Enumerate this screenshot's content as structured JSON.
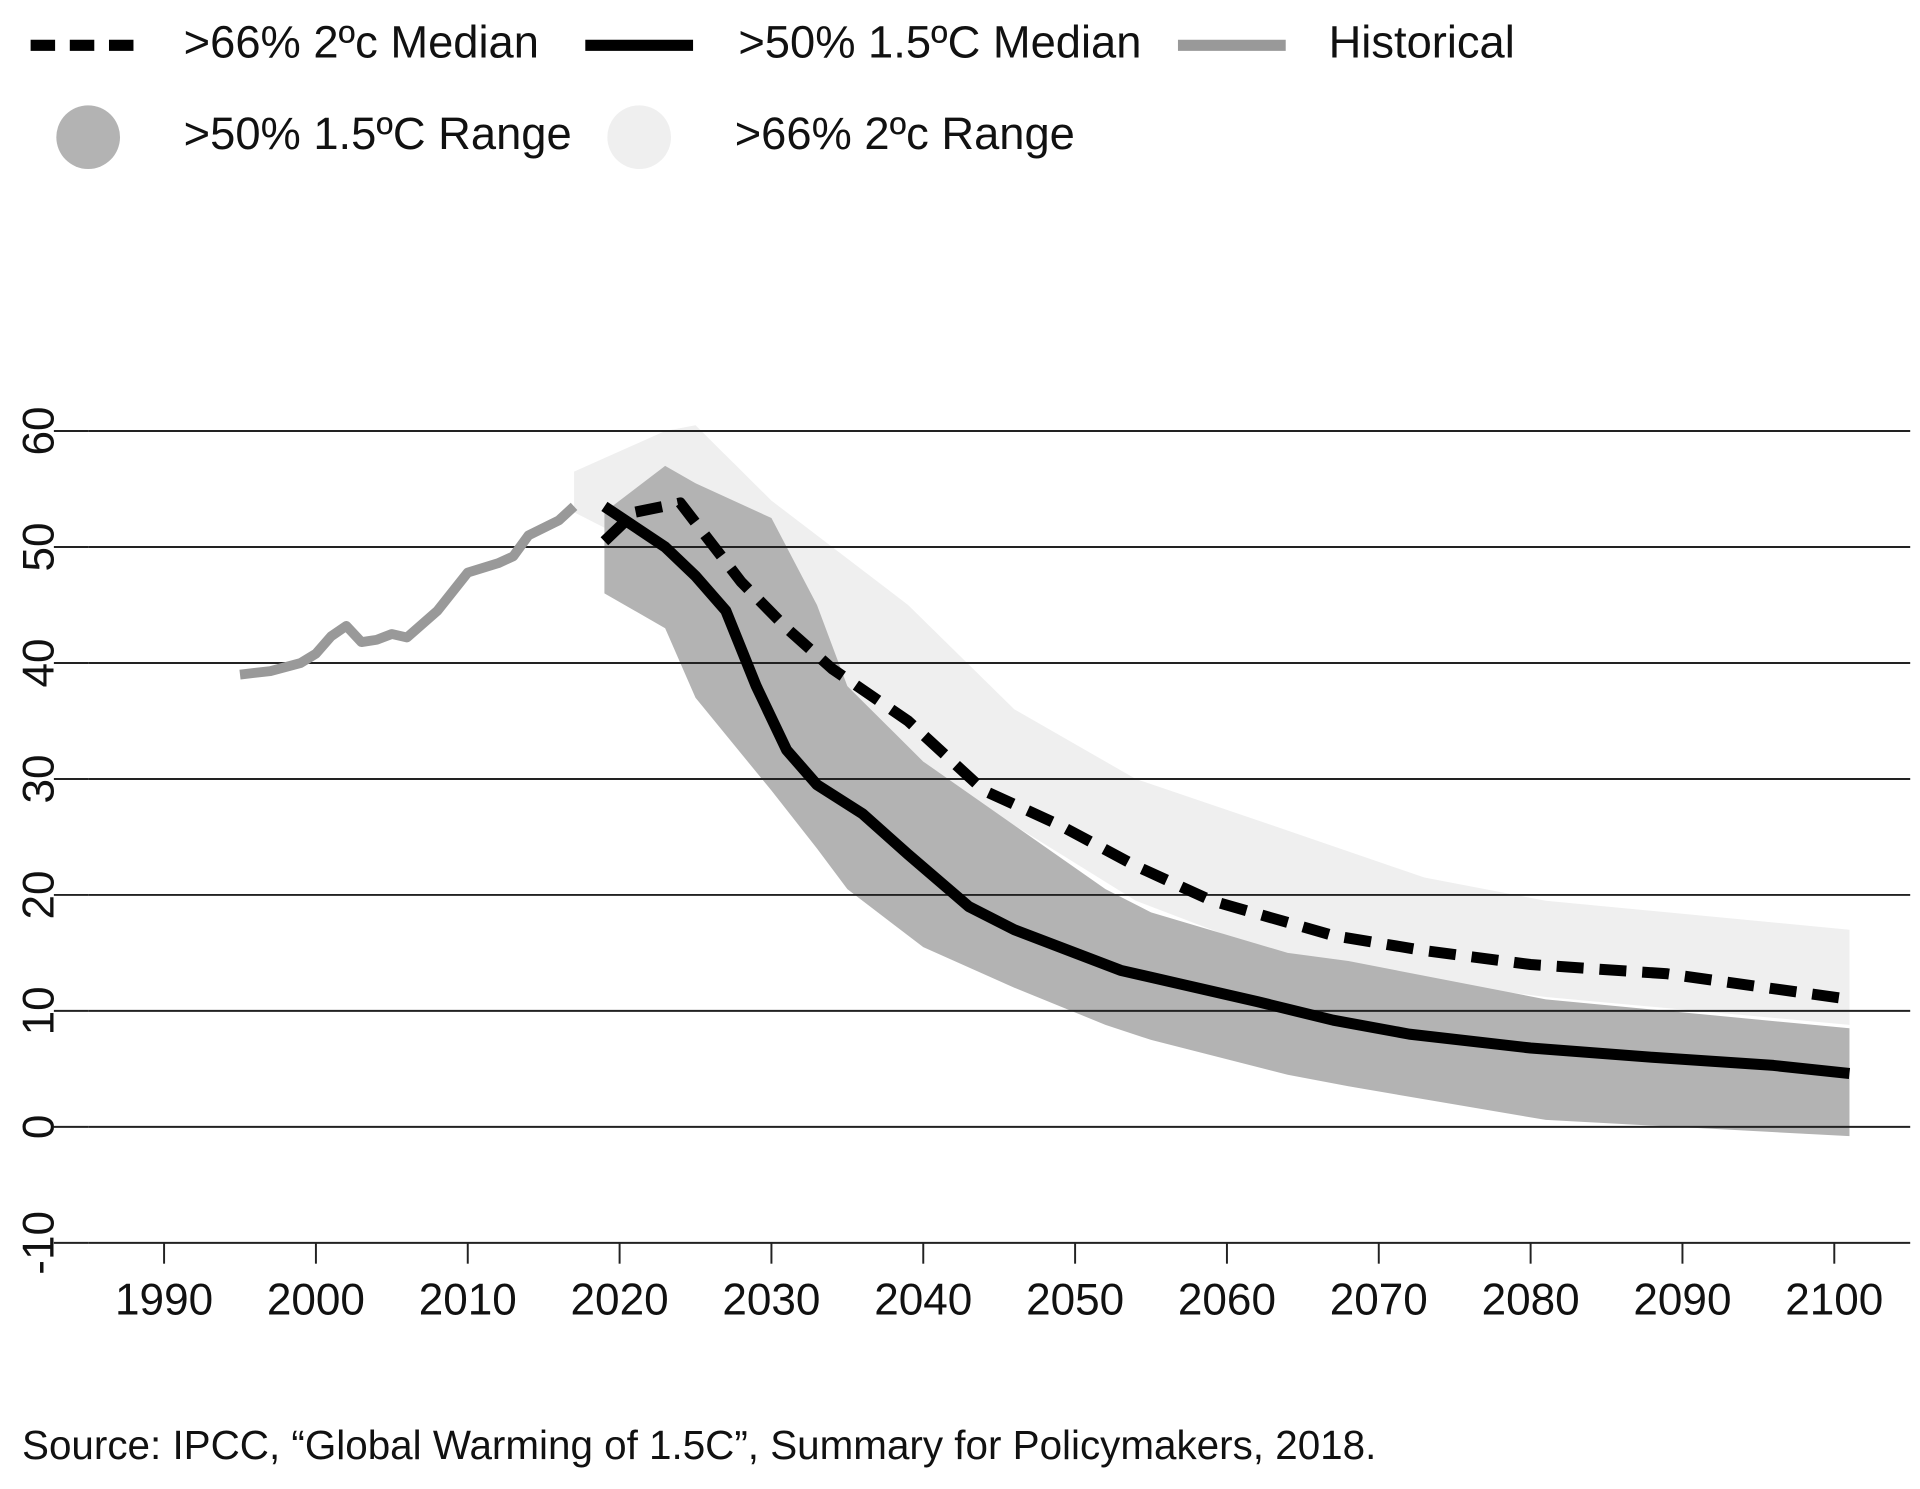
{
  "chart_data": {
    "type": "line",
    "source": "Source: IPCC, “Global Warming of 1.5C”, Summary for Policymakers, 2018.",
    "xlim": [
      1985,
      2105
    ],
    "ylim": [
      -10,
      60
    ],
    "xticks": [
      1990,
      2000,
      2010,
      2020,
      2030,
      2040,
      2050,
      2060,
      2070,
      2080,
      2090,
      2100
    ],
    "yticks": [
      -10,
      0,
      10,
      20,
      30,
      40,
      50,
      60
    ],
    "grid": true,
    "series": [
      {
        "name": ">66% 2ºc Median",
        "type": "line",
        "dash": true,
        "color": "#000000",
        "x": [
          2019,
          2021,
          2024,
          2028,
          2031,
          2034,
          2039,
          2044,
          2049,
          2054,
          2059,
          2067,
          2073,
          2080,
          2089,
          2101
        ],
        "values": [
          50.5,
          53,
          53.8,
          47,
          43,
          39.5,
          35,
          29,
          26,
          22.5,
          19.5,
          16.5,
          15.2,
          14,
          13.2,
          11
        ]
      },
      {
        "name": ">50% 1.5ºC Median",
        "type": "line",
        "dash": false,
        "color": "#000000",
        "x": [
          2019,
          2023,
          2025,
          2027,
          2029,
          2031,
          2033,
          2036,
          2039,
          2043,
          2046,
          2050,
          2053,
          2057,
          2062,
          2067,
          2072,
          2080,
          2088,
          2096,
          2101
        ],
        "values": [
          53.5,
          50,
          47.5,
          44.5,
          38,
          32.5,
          29.5,
          27,
          23.5,
          19,
          17,
          15,
          13.5,
          12.3,
          10.8,
          9.2,
          8,
          6.8,
          6,
          5.3,
          4.6
        ]
      },
      {
        "name": "Historical",
        "type": "line",
        "dash": false,
        "color": "#999999",
        "x": [
          1995,
          1997,
          1999,
          2000,
          2001,
          2002,
          2003,
          2004,
          2005,
          2006,
          2008,
          2010,
          2012,
          2013,
          2014,
          2016,
          2017
        ],
        "values": [
          39,
          39.3,
          40,
          40.8,
          42.3,
          43.2,
          41.8,
          42,
          42.5,
          42.2,
          44.5,
          47.8,
          48.6,
          49.2,
          51,
          52.3,
          53.5
        ]
      },
      {
        "name": ">50% 1.5ºC Range",
        "type": "band",
        "color": "#b3b3b3",
        "x": [
          2019,
          2023,
          2025,
          2030,
          2033,
          2035,
          2040,
          2046,
          2052,
          2055,
          2064,
          2068,
          2081,
          2101
        ],
        "upper": [
          53,
          57,
          55.5,
          52.5,
          45,
          38,
          31.5,
          26,
          20.5,
          18.5,
          15,
          14.3,
          11,
          8.5
        ],
        "lower": [
          46,
          43,
          37,
          29,
          24,
          20.5,
          15.5,
          12,
          8.8,
          7.5,
          4.5,
          3.5,
          0.6,
          -0.8
        ]
      },
      {
        "name": ">66% 2ºc Range",
        "type": "band",
        "color": "#efefef",
        "x": [
          2017,
          2023,
          2025,
          2030,
          2039,
          2046,
          2054,
          2063,
          2073,
          2081,
          2101
        ],
        "upper": [
          56.5,
          60,
          60.5,
          54,
          45,
          36,
          30,
          26,
          21.5,
          19.5,
          17
        ],
        "lower": [
          53,
          49,
          45,
          40,
          32,
          26,
          19.5,
          15,
          12.5,
          11.2,
          8.8
        ]
      }
    ],
    "legend_order": [
      0,
      1,
      2,
      3,
      4
    ]
  }
}
